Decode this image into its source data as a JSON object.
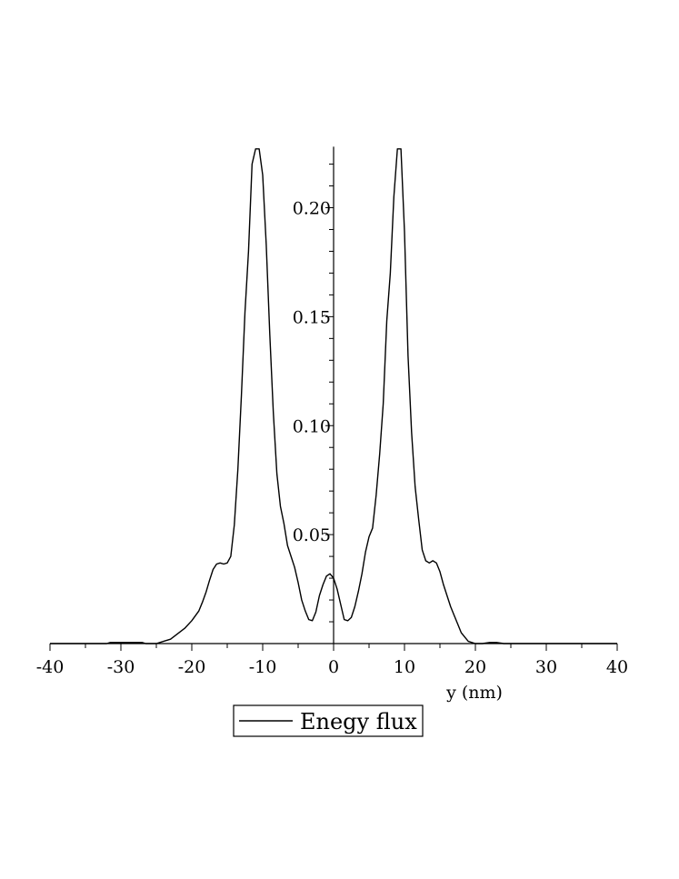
{
  "chart_data": {
    "type": "line",
    "title": "",
    "xlabel": "y (nm)",
    "ylabel": "",
    "xlim": [
      -40,
      40
    ],
    "ylim": [
      0,
      0.228
    ],
    "grid": false,
    "legend_position": "bottom-center",
    "x_ticks": [
      -40,
      -30,
      -20,
      -10,
      0,
      10,
      20,
      30,
      40
    ],
    "x_tick_labels": [
      "-40",
      "-30",
      "-20",
      "-10",
      "0",
      "10",
      "20",
      "30",
      "40"
    ],
    "y_ticks": [
      0.05,
      0.1,
      0.15,
      0.2
    ],
    "y_tick_labels": [
      "0.05",
      "0.10",
      "0.15",
      "0.20"
    ],
    "series": [
      {
        "name": "Enegy flux",
        "color": "#000000",
        "x": [
          -40,
          -32,
          -31.5,
          -27,
          -26.5,
          -25,
          -24,
          -23,
          -22,
          -21,
          -20,
          -19,
          -18.5,
          -18,
          -17.5,
          -17,
          -16.5,
          -16,
          -15.5,
          -15,
          -14.5,
          -14,
          -13.5,
          -13,
          -12.5,
          -12,
          -11.5,
          -11,
          -10.5,
          -10,
          -9.5,
          -9,
          -8.5,
          -8,
          -7.5,
          -7,
          -6.5,
          -6,
          -5.5,
          -5,
          -4.5,
          -4,
          -3.5,
          -3,
          -2.5,
          -2,
          -1.5,
          -1,
          -0.5,
          0,
          0.5,
          1,
          1.5,
          2,
          2.5,
          3,
          3.5,
          4,
          4.5,
          5,
          5.5,
          6,
          6.5,
          7,
          7.5,
          8,
          8.5,
          9,
          9.5,
          10,
          10.5,
          11,
          11.5,
          12,
          12.5,
          13,
          13.5,
          14,
          14.5,
          15,
          15.5,
          16,
          16.5,
          17,
          17.5,
          18,
          18.5,
          19,
          20,
          21,
          22,
          23,
          24,
          25,
          27.5,
          28,
          32.5,
          33,
          40
        ],
        "y": [
          0,
          0,
          0.0005,
          0.0005,
          0,
          0,
          0.001,
          0.002,
          0.0045,
          0.007,
          0.0105,
          0.015,
          0.019,
          0.0235,
          0.029,
          0.034,
          0.0365,
          0.037,
          0.0365,
          0.037,
          0.04,
          0.0545,
          0.08,
          0.114,
          0.152,
          0.18,
          0.22,
          0.227,
          0.227,
          0.215,
          0.183,
          0.142,
          0.106,
          0.078,
          0.063,
          0.055,
          0.045,
          0.04,
          0.035,
          0.028,
          0.02,
          0.015,
          0.011,
          0.0105,
          0.0145,
          0.022,
          0.027,
          0.031,
          0.032,
          0.03,
          0.025,
          0.018,
          0.011,
          0.0105,
          0.012,
          0.017,
          0.024,
          0.032,
          0.042,
          0.049,
          0.053,
          0.068,
          0.087,
          0.11,
          0.148,
          0.17,
          0.205,
          0.227,
          0.227,
          0.189,
          0.132,
          0.097,
          0.072,
          0.057,
          0.043,
          0.038,
          0.037,
          0.038,
          0.037,
          0.033,
          0.027,
          0.022,
          0.017,
          0.013,
          0.009,
          0.005,
          0.003,
          0.001,
          0,
          0,
          0.0005,
          0.0005,
          0,
          0,
          0,
          0,
          0,
          0,
          0
        ]
      }
    ],
    "legend": {
      "entries": [
        "Enegy flux"
      ]
    }
  }
}
